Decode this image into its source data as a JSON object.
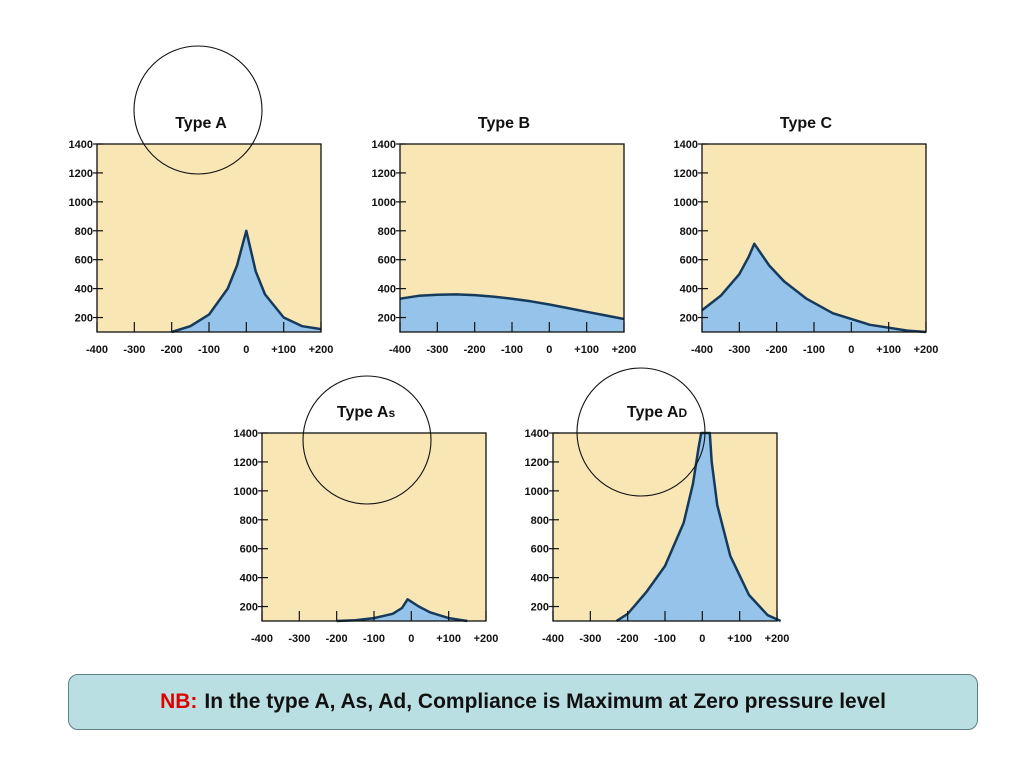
{
  "colors": {
    "background_fill": "#f9e6b5",
    "curve_fill": "#96c3ea",
    "curve_stroke": "#163a5c",
    "axis": "#111111",
    "highlight_circle": "#111111",
    "note_bg": "#b9dfe2",
    "note_prefix": "#e00000"
  },
  "chart_data": [
    {
      "type": "area",
      "title": "Type A",
      "xlim": [
        -400,
        200
      ],
      "ylim": [
        100,
        1400
      ],
      "xticks": [
        "-400",
        "-300",
        "-200",
        "-100",
        "0",
        "+100",
        "+200"
      ],
      "yticks": [
        "1400",
        "1200",
        "1000",
        "800",
        "600",
        "400",
        "200"
      ],
      "x": [
        -200,
        -150,
        -100,
        -50,
        -25,
        0,
        25,
        50,
        100,
        150,
        200
      ],
      "y": [
        100,
        140,
        220,
        400,
        560,
        800,
        520,
        360,
        200,
        140,
        120
      ]
    },
    {
      "type": "area",
      "title": "Type B",
      "xlim": [
        -400,
        200
      ],
      "ylim": [
        100,
        1400
      ],
      "xticks": [
        "-400",
        "-300",
        "-200",
        "-100",
        "0",
        "+100",
        "+200"
      ],
      "yticks": [
        "1400",
        "1200",
        "1000",
        "800",
        "600",
        "400",
        "200"
      ],
      "x": [
        -400,
        -350,
        -300,
        -250,
        -200,
        -150,
        -100,
        -50,
        0,
        50,
        100,
        150,
        200
      ],
      "y": [
        330,
        350,
        358,
        360,
        355,
        345,
        330,
        312,
        290,
        265,
        240,
        215,
        190
      ]
    },
    {
      "type": "area",
      "title": "Type C",
      "xlim": [
        -400,
        200
      ],
      "ylim": [
        100,
        1400
      ],
      "xticks": [
        "-400",
        "-300",
        "-200",
        "-100",
        "0",
        "+100",
        "+200"
      ],
      "yticks": [
        "1400",
        "1200",
        "1000",
        "800",
        "600",
        "400",
        "200"
      ],
      "x": [
        -400,
        -350,
        -300,
        -275,
        -260,
        -220,
        -180,
        -120,
        -50,
        50,
        150,
        200
      ],
      "y": [
        250,
        350,
        500,
        620,
        710,
        560,
        450,
        330,
        230,
        150,
        110,
        100
      ]
    },
    {
      "type": "area",
      "title": "Type A",
      "title_suffix": "s",
      "xlim": [
        -400,
        200
      ],
      "ylim": [
        100,
        1400
      ],
      "xticks": [
        "-400",
        "-300",
        "-200",
        "-100",
        "0",
        "+100",
        "+200"
      ],
      "yticks": [
        "1400",
        "1200",
        "1000",
        "800",
        "600",
        "400",
        "200"
      ],
      "x": [
        -200,
        -150,
        -100,
        -50,
        -25,
        -10,
        20,
        50,
        100,
        150
      ],
      "y": [
        100,
        105,
        120,
        150,
        190,
        250,
        200,
        160,
        120,
        100
      ]
    },
    {
      "type": "area",
      "title": "Type A",
      "title_suffix": "D",
      "xlim": [
        -400,
        200
      ],
      "ylim": [
        100,
        1400
      ],
      "xticks": [
        "-400",
        "-300",
        "-200",
        "-100",
        "0",
        "+100",
        "+200"
      ],
      "yticks": [
        "1400",
        "1200",
        "1000",
        "800",
        "600",
        "400",
        "200"
      ],
      "x": [
        -230,
        -200,
        -150,
        -100,
        -50,
        -25,
        -10,
        -3,
        20,
        25,
        40,
        75,
        125,
        175,
        210
      ],
      "y": [
        100,
        150,
        300,
        480,
        780,
        1050,
        1300,
        1400,
        1400,
        1200,
        900,
        550,
        280,
        140,
        100
      ]
    }
  ],
  "note": {
    "prefix": "NB:",
    "text": "In the type A, As, Ad, Compliance is Maximum at Zero pressure level"
  }
}
